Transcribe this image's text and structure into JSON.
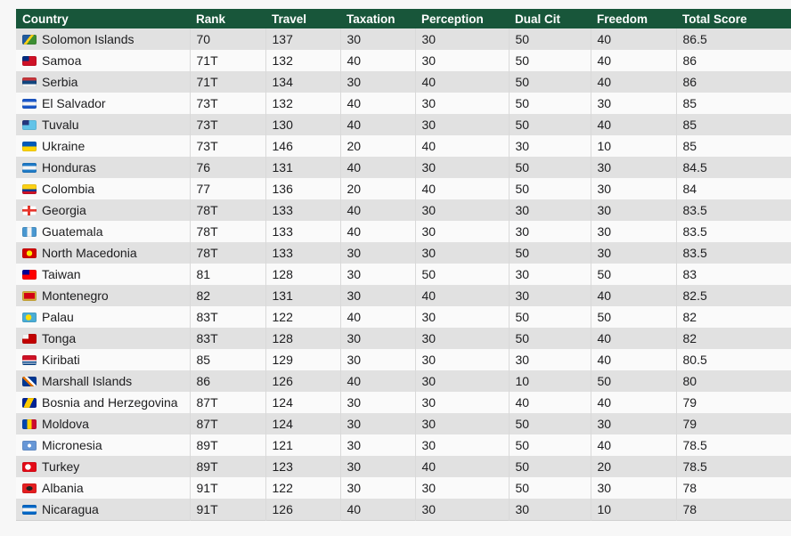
{
  "page": {
    "background_color": "#f7f7f7"
  },
  "table": {
    "header": {
      "bg_color": "#18563a",
      "text_color": "#ffffff",
      "columns": [
        "Country",
        "Rank",
        "Travel",
        "Taxation",
        "Perception",
        "Dual Cit",
        "Freedom",
        "Total Score"
      ]
    },
    "row_colors": {
      "odd": "#e1e1e1",
      "even": "#fafafa"
    },
    "rows": [
      {
        "country": "Solomon Islands",
        "rank": "70",
        "travel": 137,
        "taxation": 30,
        "perception": 30,
        "dual_cit": 50,
        "freedom": 40,
        "total_score": 86.5,
        "flag_icon": "flag-solomon-islands-icon",
        "flag_bg": "linear-gradient(128deg,#215b9e 40%,#fcd116 40% 54%,#3d8e33 54%)"
      },
      {
        "country": "Samoa",
        "rank": "71T",
        "travel": 132,
        "taxation": 40,
        "perception": 30,
        "dual_cit": 50,
        "freedom": 40,
        "total_score": 86,
        "flag_icon": "flag-samoa-icon",
        "flag_bg": "linear-gradient(#002b7f,#002b7f) 0 0/47% 50% no-repeat,#ce1126"
      },
      {
        "country": "Serbia",
        "rank": "71T",
        "travel": 134,
        "taxation": 30,
        "perception": 40,
        "dual_cit": 50,
        "freedom": 40,
        "total_score": 86,
        "flag_icon": "flag-serbia-icon",
        "flag_bg": "linear-gradient(180deg,#c6363c 33%,#10457e 33% 66%,#f2f2f2 66%)"
      },
      {
        "country": "El Salvador",
        "rank": "73T",
        "travel": 132,
        "taxation": 40,
        "perception": 30,
        "dual_cit": 50,
        "freedom": 30,
        "total_score": 85,
        "flag_icon": "flag-el-salvador-icon",
        "flag_bg": "linear-gradient(180deg,#1b57c8 33%,#f5f5f5 33% 66%,#1b57c8 66%)"
      },
      {
        "country": "Tuvalu",
        "rank": "73T",
        "travel": 130,
        "taxation": 40,
        "perception": 30,
        "dual_cit": 50,
        "freedom": 40,
        "total_score": 85,
        "flag_icon": "flag-tuvalu-icon",
        "flag_bg": "linear-gradient(#24367d,#24367d) 0 0/47% 50% no-repeat,#62c3e8"
      },
      {
        "country": "Ukraine",
        "rank": "73T",
        "travel": 146,
        "taxation": 20,
        "perception": 40,
        "dual_cit": 30,
        "freedom": 10,
        "total_score": 85,
        "flag_icon": "flag-ukraine-icon",
        "flag_bg": "linear-gradient(180deg,#005bbb 50%,#ffd500 50%)"
      },
      {
        "country": "Honduras",
        "rank": "76",
        "travel": 131,
        "taxation": 40,
        "perception": 30,
        "dual_cit": 50,
        "freedom": 30,
        "total_score": 84.5,
        "flag_icon": "flag-honduras-icon",
        "flag_bg": "linear-gradient(180deg,#1f7ac6 33%,#f5f5f5 33% 66%,#1f7ac6 66%)"
      },
      {
        "country": "Colombia",
        "rank": "77",
        "travel": 136,
        "taxation": 20,
        "perception": 40,
        "dual_cit": 50,
        "freedom": 30,
        "total_score": 84,
        "flag_icon": "flag-colombia-icon",
        "flag_bg": "linear-gradient(180deg,#fcd116 50%,#003893 50% 75%,#ce1126 75%)"
      },
      {
        "country": "Georgia",
        "rank": "78T",
        "travel": 133,
        "taxation": 40,
        "perception": 30,
        "dual_cit": 30,
        "freedom": 30,
        "total_score": 83.5,
        "flag_icon": "flag-georgia-icon",
        "flag_bg": "linear-gradient(#e8362d,#e8362d) 50% 0/20% 100% no-repeat,linear-gradient(#e8362d,#e8362d) 0 50%/100% 24% no-repeat,#ffffff"
      },
      {
        "country": "Guatemala",
        "rank": "78T",
        "travel": 133,
        "taxation": 40,
        "perception": 30,
        "dual_cit": 30,
        "freedom": 30,
        "total_score": 83.5,
        "flag_icon": "flag-guatemala-icon",
        "flag_bg": "linear-gradient(90deg,#4997d0 33%,#f5f5f5 33% 66%,#4997d0 66%)"
      },
      {
        "country": "North Macedonia",
        "rank": "78T",
        "travel": 133,
        "taxation": 30,
        "perception": 30,
        "dual_cit": 50,
        "freedom": 30,
        "total_score": 83.5,
        "flag_icon": "flag-north-macedonia-icon",
        "flag_bg": "radial-gradient(circle at 50% 50%,#ffe600 32%,#d20000 34%)"
      },
      {
        "country": "Taiwan",
        "rank": "81",
        "travel": 128,
        "taxation": 30,
        "perception": 50,
        "dual_cit": 30,
        "freedom": 50,
        "total_score": 83,
        "flag_icon": "flag-taiwan-icon",
        "flag_bg": "linear-gradient(#000095,#000095) 0 0/50% 50% no-repeat,#fe0000"
      },
      {
        "country": "Montenegro",
        "rank": "82",
        "travel": 131,
        "taxation": 30,
        "perception": 40,
        "dual_cit": 30,
        "freedom": 40,
        "total_score": 82.5,
        "flag_icon": "flag-montenegro-icon",
        "flag_bg": "linear-gradient(#d20014,#d20014) 50% 50%/76% 60% no-repeat,#d3ae3b"
      },
      {
        "country": "Palau",
        "rank": "83T",
        "travel": 122,
        "taxation": 40,
        "perception": 30,
        "dual_cit": 50,
        "freedom": 50,
        "total_score": 82,
        "flag_icon": "flag-palau-icon",
        "flag_bg": "radial-gradient(circle at 44% 50%,#ffde00 30%,#4aadd6 32%)"
      },
      {
        "country": "Tonga",
        "rank": "83T",
        "travel": 128,
        "taxation": 30,
        "perception": 30,
        "dual_cit": 50,
        "freedom": 40,
        "total_score": 82,
        "flag_icon": "flag-tonga-icon",
        "flag_bg": "linear-gradient(#f5f5f5,#f5f5f5) 0 0/45% 50% no-repeat,#c10000"
      },
      {
        "country": "Kiribati",
        "rank": "85",
        "travel": 129,
        "taxation": 30,
        "perception": 30,
        "dual_cit": 30,
        "freedom": 40,
        "total_score": 80.5,
        "flag_icon": "flag-kiribati-icon",
        "flag_bg": "linear-gradient(180deg,#ce1126 52%,#f5f5f5 52% 64%,#003f87 64% 76%,#f5f5f5 76% 88%,#003f87 88%)"
      },
      {
        "country": "Marshall Islands",
        "rank": "86",
        "travel": 126,
        "taxation": 40,
        "perception": 30,
        "dual_cit": 10,
        "freedom": 50,
        "total_score": 80,
        "flag_icon": "flag-marshall-islands-icon",
        "flag_bg": "linear-gradient(45deg,#003893 36%,#e57200 36% 50%,#ffffff 50% 62%,#003893 62%)"
      },
      {
        "country": "Bosnia and Herzegovina",
        "rank": "87T",
        "travel": 124,
        "taxation": 30,
        "perception": 30,
        "dual_cit": 40,
        "freedom": 40,
        "total_score": 79,
        "flag_icon": "flag-bosnia-and-herzegovina-icon",
        "flag_bg": "linear-gradient(115deg,#002395 30%,#fecb00 30% 62%,#002395 62%)"
      },
      {
        "country": "Moldova",
        "rank": "87T",
        "travel": 124,
        "taxation": 30,
        "perception": 30,
        "dual_cit": 50,
        "freedom": 30,
        "total_score": 79,
        "flag_icon": "flag-moldova-icon",
        "flag_bg": "linear-gradient(90deg,#0046ae 33%,#ffd200 33% 66%,#cc092f 66%)"
      },
      {
        "country": "Micronesia",
        "rank": "89T",
        "travel": 121,
        "taxation": 30,
        "perception": 30,
        "dual_cit": 50,
        "freedom": 40,
        "total_score": 78.5,
        "flag_icon": "flag-micronesia-icon",
        "flag_bg": "radial-gradient(circle at 50% 50%,#ffffff 20%,#6797d6 22%)"
      },
      {
        "country": "Turkey",
        "rank": "89T",
        "travel": 123,
        "taxation": 30,
        "perception": 40,
        "dual_cit": 50,
        "freedom": 20,
        "total_score": 78.5,
        "flag_icon": "flag-turkey-icon",
        "flag_bg": "radial-gradient(circle at 40% 50%,#ffffff 28%,#e30a17 30%)"
      },
      {
        "country": "Albania",
        "rank": "91T",
        "travel": 122,
        "taxation": 30,
        "perception": 30,
        "dual_cit": 50,
        "freedom": 30,
        "total_score": 78,
        "flag_icon": "flag-albania-icon",
        "flag_bg": "radial-gradient(ellipse at 50% 50%,#222222 30%,#e41e20 32%)"
      },
      {
        "country": "Nicaragua",
        "rank": "91T",
        "travel": 126,
        "taxation": 40,
        "perception": 30,
        "dual_cit": 30,
        "freedom": 10,
        "total_score": 78,
        "flag_icon": "flag-nicaragua-icon",
        "flag_bg": "linear-gradient(180deg,#0067c6 33%,#f5f5f5 33% 66%,#0067c6 66%)"
      }
    ]
  }
}
